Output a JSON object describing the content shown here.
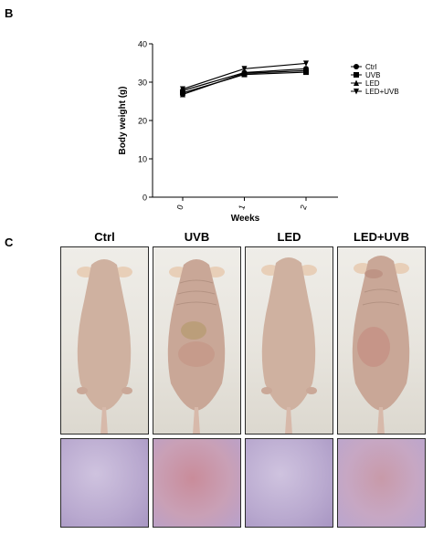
{
  "panel_b_label": "B",
  "panel_c_label": "C",
  "chart_data": {
    "type": "line",
    "xlabel": "Weeks",
    "ylabel": "Body weight (g)",
    "x": [
      0,
      1,
      2
    ],
    "ylim": [
      0,
      40
    ],
    "yticks": [
      0,
      10,
      20,
      30,
      40
    ],
    "xticks": [
      "0",
      "1",
      "2"
    ],
    "legend_position": "right",
    "grid": false,
    "series": [
      {
        "name": "Ctrl",
        "values": [
          27.8,
          32.5,
          33.5
        ],
        "marker": "circle"
      },
      {
        "name": "UVB",
        "values": [
          27.2,
          32.0,
          32.6
        ],
        "marker": "square"
      },
      {
        "name": "LED",
        "values": [
          26.8,
          32.3,
          33.0
        ],
        "marker": "triangle-up"
      },
      {
        "name": "LED+UVB",
        "values": [
          28.2,
          33.5,
          34.9
        ],
        "marker": "triangle-down"
      }
    ]
  },
  "photos": {
    "titles": [
      "Ctrl",
      "UVB",
      "LED",
      "LED+UVB"
    ]
  }
}
